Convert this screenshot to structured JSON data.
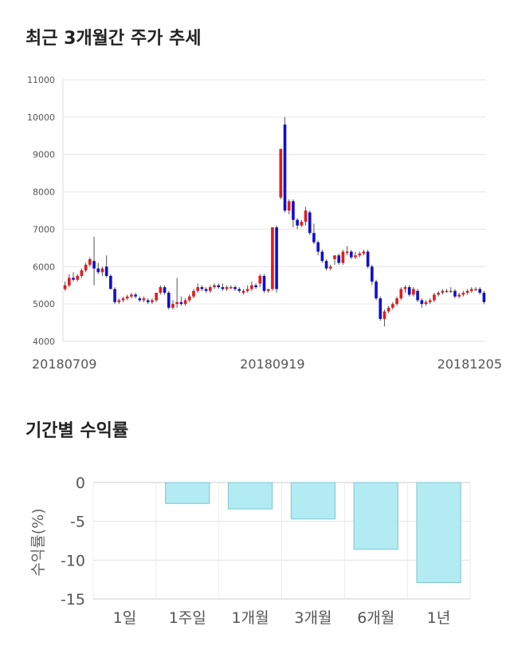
{
  "titles": {
    "price_trend": "최근 3개월간 주가 추세",
    "period_returns": "기간별 수익률"
  },
  "chart_data": [
    {
      "type": "candlestick",
      "title": "최근 3개월간 주가 추세",
      "ylim": [
        4000,
        11000
      ],
      "y_ticks": [
        4000,
        5000,
        6000,
        7000,
        8000,
        9000,
        10000,
        11000
      ],
      "x_tick_labels": [
        {
          "index": 0,
          "label": "20180709"
        },
        {
          "index": 50,
          "label": "20180919"
        },
        {
          "index": 101,
          "label": "20181205"
        }
      ],
      "colors": {
        "up": "#e41a1c",
        "down": "#1010cc"
      },
      "grid": true,
      "ohlc": [
        [
          5400,
          5600,
          5350,
          5500
        ],
        [
          5500,
          5800,
          5450,
          5700
        ],
        [
          5700,
          5850,
          5600,
          5650
        ],
        [
          5650,
          5800,
          5600,
          5750
        ],
        [
          5750,
          5950,
          5700,
          5900
        ],
        [
          5900,
          6100,
          5850,
          6050
        ],
        [
          6050,
          6250,
          6000,
          6200
        ],
        [
          6150,
          6800,
          5500,
          5950
        ],
        [
          5950,
          6100,
          5800,
          5850
        ],
        [
          5850,
          6000,
          5750,
          5950
        ],
        [
          6000,
          6300,
          5700,
          5750
        ],
        [
          5750,
          5800,
          5400,
          5400
        ],
        [
          5400,
          5450,
          5000,
          5050
        ],
        [
          5050,
          5150,
          5000,
          5100
        ],
        [
          5100,
          5200,
          5050,
          5150
        ],
        [
          5150,
          5250,
          5100,
          5200
        ],
        [
          5200,
          5300,
          5150,
          5250
        ],
        [
          5250,
          5300,
          5150,
          5200
        ],
        [
          5150,
          5200,
          5050,
          5100
        ],
        [
          5100,
          5200,
          5050,
          5150
        ],
        [
          5100,
          5150,
          5000,
          5050
        ],
        [
          5050,
          5150,
          5000,
          5100
        ],
        [
          5100,
          5300,
          5050,
          5300
        ],
        [
          5300,
          5500,
          5250,
          5450
        ],
        [
          5450,
          5500,
          5250,
          5300
        ],
        [
          5300,
          5350,
          4850,
          4900
        ],
        [
          4900,
          5100,
          4850,
          5000
        ],
        [
          5000,
          5700,
          4900,
          5050
        ],
        [
          5050,
          5200,
          4950,
          5000
        ],
        [
          5000,
          5150,
          4950,
          5100
        ],
        [
          5100,
          5250,
          5050,
          5200
        ],
        [
          5200,
          5400,
          5150,
          5350
        ],
        [
          5350,
          5550,
          5300,
          5450
        ],
        [
          5450,
          5500,
          5350,
          5400
        ],
        [
          5400,
          5450,
          5300,
          5350
        ],
        [
          5350,
          5500,
          5300,
          5450
        ],
        [
          5450,
          5550,
          5400,
          5500
        ],
        [
          5500,
          5550,
          5400,
          5450
        ],
        [
          5450,
          5550,
          5350,
          5400
        ],
        [
          5400,
          5500,
          5350,
          5450
        ],
        [
          5450,
          5500,
          5400,
          5450
        ],
        [
          5450,
          5500,
          5350,
          5400
        ],
        [
          5400,
          5450,
          5300,
          5350
        ],
        [
          5300,
          5400,
          5250,
          5350
        ],
        [
          5350,
          5500,
          5300,
          5400
        ],
        [
          5400,
          5600,
          5350,
          5500
        ],
        [
          5500,
          5550,
          5400,
          5450
        ],
        [
          5550,
          5800,
          5450,
          5750
        ],
        [
          5750,
          5800,
          5300,
          5350
        ],
        [
          5350,
          5400,
          5300,
          5400
        ],
        [
          5400,
          7050,
          5350,
          7050
        ],
        [
          7050,
          7100,
          5300,
          5400
        ],
        [
          7850,
          9150,
          7800,
          9150
        ],
        [
          9800,
          10000,
          7450,
          7500
        ],
        [
          7500,
          7800,
          7400,
          7750
        ],
        [
          7750,
          7800,
          7050,
          7250
        ],
        [
          7250,
          7300,
          7000,
          7100
        ],
        [
          7100,
          7250,
          7050,
          7200
        ],
        [
          7200,
          7600,
          7100,
          7500
        ],
        [
          7450,
          7500,
          6850,
          6900
        ],
        [
          6900,
          7150,
          6600,
          6650
        ],
        [
          6650,
          6700,
          6300,
          6400
        ],
        [
          6400,
          6450,
          6100,
          6150
        ],
        [
          6150,
          6200,
          5900,
          5950
        ],
        [
          5950,
          6050,
          5900,
          6000
        ],
        [
          6200,
          6300,
          6050,
          6300
        ],
        [
          6300,
          6350,
          6050,
          6100
        ],
        [
          6100,
          6450,
          6050,
          6400
        ],
        [
          6400,
          6550,
          6300,
          6400
        ],
        [
          6400,
          6450,
          6200,
          6250
        ],
        [
          6250,
          6400,
          6200,
          6300
        ],
        [
          6300,
          6400,
          6250,
          6350
        ],
        [
          6350,
          6450,
          6300,
          6400
        ],
        [
          6400,
          6450,
          5950,
          6000
        ],
        [
          6000,
          6050,
          5500,
          5600
        ],
        [
          5600,
          5650,
          5100,
          5150
        ],
        [
          5150,
          5200,
          4550,
          4600
        ],
        [
          4600,
          4850,
          4400,
          4800
        ],
        [
          4800,
          4950,
          4750,
          4900
        ],
        [
          4900,
          5050,
          4850,
          5000
        ],
        [
          5000,
          5200,
          4950,
          5150
        ],
        [
          5150,
          5450,
          5100,
          5400
        ],
        [
          5400,
          5500,
          5300,
          5450
        ],
        [
          5450,
          5500,
          5200,
          5250
        ],
        [
          5250,
          5450,
          5200,
          5400
        ],
        [
          5350,
          5400,
          5050,
          5100
        ],
        [
          5100,
          5150,
          4900,
          5000
        ],
        [
          5000,
          5100,
          4950,
          5050
        ],
        [
          5050,
          5150,
          5000,
          5100
        ],
        [
          5100,
          5300,
          5050,
          5250
        ],
        [
          5250,
          5350,
          5200,
          5300
        ],
        [
          5300,
          5400,
          5250,
          5350
        ],
        [
          5350,
          5400,
          5300,
          5350
        ],
        [
          5350,
          5450,
          5300,
          5350
        ],
        [
          5350,
          5400,
          5150,
          5200
        ],
        [
          5200,
          5300,
          5150,
          5250
        ],
        [
          5250,
          5350,
          5200,
          5300
        ],
        [
          5300,
          5400,
          5250,
          5350
        ],
        [
          5350,
          5450,
          5300,
          5400
        ],
        [
          5400,
          5450,
          5350,
          5400
        ],
        [
          5400,
          5450,
          5250,
          5300
        ],
        [
          5300,
          5350,
          5000,
          5050
        ]
      ]
    },
    {
      "type": "bar",
      "title": "기간별 수익률",
      "categories": [
        "1일",
        "1주일",
        "1개월",
        "3개월",
        "6개월",
        "1년"
      ],
      "values": [
        0,
        -2.7,
        -3.4,
        -4.7,
        -8.6,
        -12.9
      ],
      "ylabel": "수익률(%)",
      "ylim": [
        -15,
        0
      ],
      "y_ticks": [
        0,
        -5,
        -10,
        -15
      ],
      "bar_color": "#b2ebf2",
      "bar_border": "#80c4d0",
      "grid": true
    }
  ]
}
